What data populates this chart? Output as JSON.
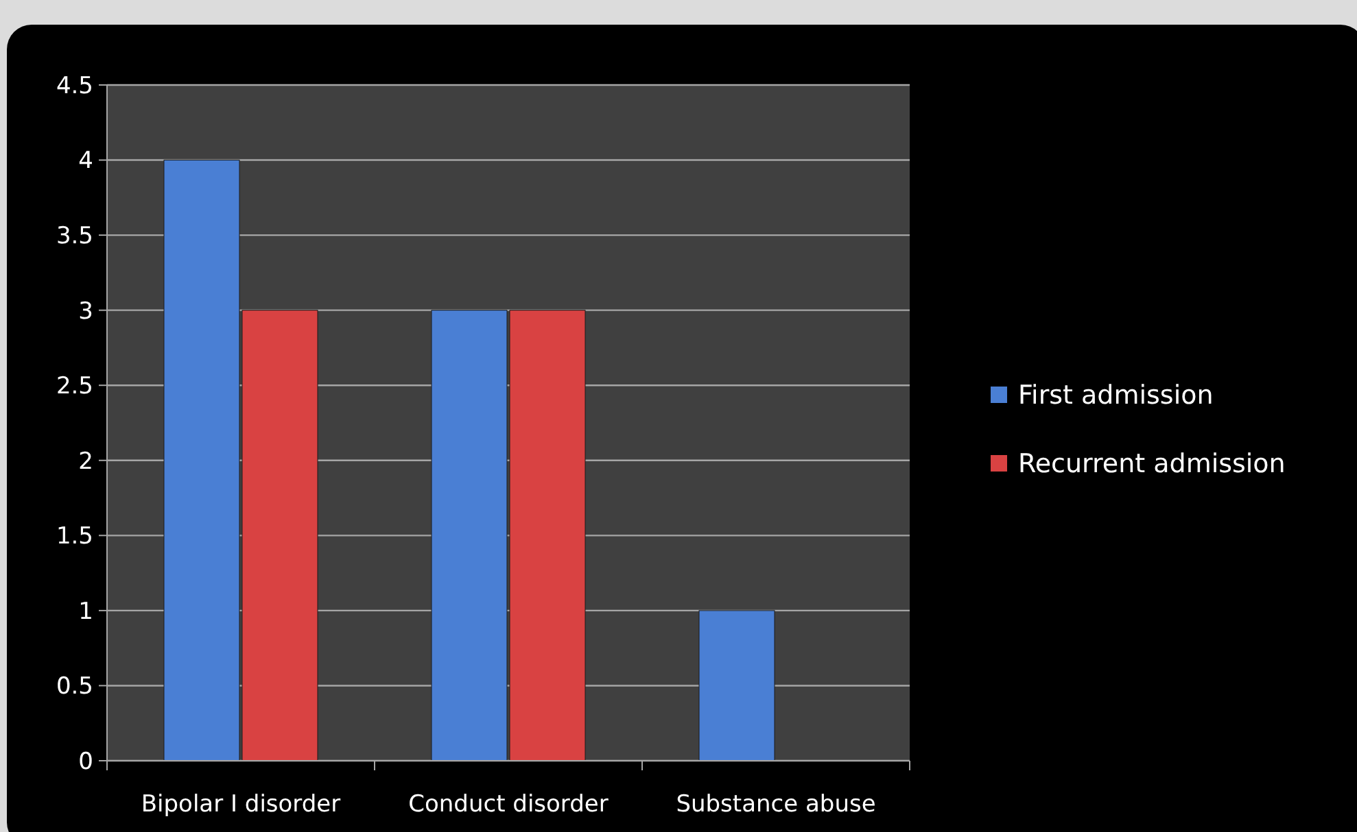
{
  "chart_data": {
    "type": "bar",
    "categories": [
      "Bipolar I disorder",
      "Conduct disorder",
      "Substance abuse"
    ],
    "series": [
      {
        "name": "First admission",
        "color": "#4a7fd4",
        "values": [
          4,
          3,
          1
        ]
      },
      {
        "name": "Recurrent admission",
        "color": "#d94242",
        "values": [
          3,
          3,
          0
        ]
      }
    ],
    "ylim": [
      0,
      4.5
    ],
    "yticks": [
      0,
      0.5,
      1,
      1.5,
      2,
      2.5,
      3,
      3.5,
      4,
      4.5
    ],
    "grid": "y",
    "legend": "right"
  }
}
